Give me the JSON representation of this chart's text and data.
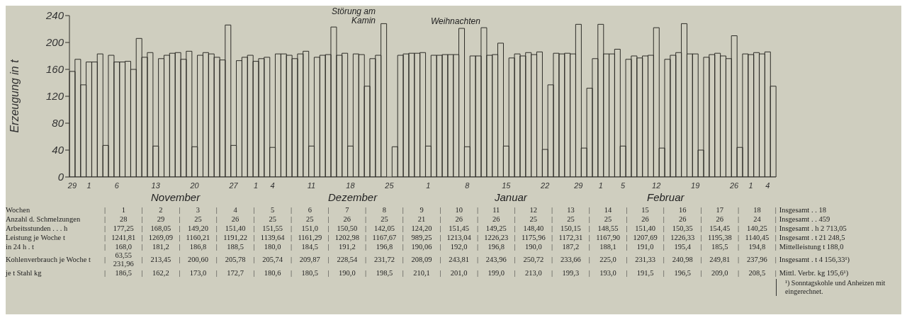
{
  "chart_data": {
    "type": "bar",
    "ylabel": "Erzeugung in t",
    "color": "#2e2d28",
    "ylim": [
      0,
      240
    ],
    "yticks": [
      0,
      40,
      80,
      120,
      160,
      200,
      240
    ],
    "grid": false,
    "legend": false,
    "categories": [
      "29",
      null,
      null,
      "1",
      null,
      null,
      null,
      null,
      "6",
      null,
      null,
      null,
      null,
      null,
      null,
      "13",
      null,
      null,
      null,
      null,
      null,
      null,
      "20",
      null,
      null,
      null,
      null,
      null,
      null,
      "27",
      null,
      null,
      null,
      "1",
      null,
      null,
      "4",
      null,
      null,
      null,
      null,
      null,
      null,
      "11",
      null,
      null,
      null,
      null,
      null,
      null,
      "18",
      null,
      null,
      null,
      null,
      null,
      null,
      "25",
      null,
      null,
      null,
      null,
      null,
      null,
      "1",
      null,
      null,
      null,
      null,
      null,
      null,
      "8",
      null,
      null,
      null,
      null,
      null,
      null,
      "15",
      null,
      null,
      null,
      null,
      null,
      null,
      "22",
      null,
      null,
      null,
      null,
      null,
      "29",
      null,
      null,
      null,
      "1",
      null,
      null,
      null,
      "5",
      null,
      null,
      null,
      null,
      null,
      "12",
      null,
      null,
      null,
      null,
      null,
      null,
      "19",
      null,
      null,
      null,
      null,
      null,
      null,
      "26",
      null,
      null,
      "1",
      null,
      null,
      "4",
      null
    ],
    "values": [
      157,
      175,
      137,
      171,
      171,
      183,
      47,
      181,
      171,
      171,
      172,
      160,
      206,
      178,
      185,
      46,
      176,
      181,
      184,
      185,
      175,
      187,
      45,
      181,
      185,
      183,
      178,
      174,
      226,
      47,
      173,
      178,
      181,
      172,
      176,
      178,
      44,
      183,
      183,
      181,
      176,
      183,
      187,
      46,
      178,
      181,
      182,
      223,
      181,
      184,
      46,
      183,
      182,
      135,
      176,
      181,
      228,
      null,
      45,
      181,
      183,
      184,
      184,
      185,
      46,
      181,
      181,
      182,
      182,
      182,
      221,
      45,
      180,
      180,
      222,
      181,
      182,
      199,
      46,
      177,
      183,
      180,
      185,
      182,
      186,
      41,
      137,
      184,
      183,
      184,
      183,
      227,
      43,
      132,
      176,
      227,
      183,
      183,
      190,
      46,
      175,
      180,
      177,
      180,
      181,
      222,
      43,
      175,
      181,
      185,
      228,
      183,
      183,
      40,
      178,
      182,
      184,
      180,
      176,
      210,
      44,
      183,
      182,
      185,
      183,
      186,
      135
    ],
    "annotations": [
      "Störung am Kamin",
      "Weihnachten",
      "November",
      "Dezember",
      "Januar",
      "Februar",
      "Wochen | 1 | 2 | 3 | 4 | 5 | 6 | 7 | 8 | 9 | 10 | 11 | 12 | 13 | 14 | 15 | 16 | 17 | 18 | Insgesamt . . 18",
      "Anzahl d. Schmelzungen | 28 | 29 | 25 | 26 | 25 | 25 | 26 | 25 | 21 | 26 | 26 | 25 | 25 | 25 | 26 | 26 | 26 | 24 | Insgesamt . . 459",
      "Arbeitsstunden . . . h | 177,25 | 168,05 | 149,20 | 151,40 | 151,55 | 151,0 | 150,50 | 142,05 | 124,20 | 151,45 | 149,25 | 148,40 | 150,15 | 148,55 | 151,40 | 150,35 | 154,45 | 140,25 | Insgesamt . h 2 713,05",
      "Leistung je Woche t | 1241,81 | 1269,09 | 1160,21 | 1191,22 | 1139,64 | 1161,29 | 1202,98 | 1167,67 | 989,25 | 1213,04 | 1226,23 | 1175,96 | 1172,31 | 1167,90 | 1207,69 | 1226,33 | 1195,38 | 1140,45 | Insgesamt . t 21 248,5",
      "in 24 h . t | 168,0 | 181,2 | 186,8 | 188,5 | 180,0 | 184,5 | 191,2 | 196,8 | 190,06 | 192,0 | 196,8 | 190,0 | 187,2 | 188,1 | 191,0 | 195,4 | 185,5 | 194,8 | Mittelleistung t 188,0",
      "Kohlenverbrauch je Woche t | 63,55 231,96 | 213,45 | 200,60 | 205,78 | 205,74 | 209,87 | 228,54 | 231,72 | 208,09 | 243,81 | 243,96 | 250,72 | 233,66 | 225,0 | 231,33 | 240,98 | 249,81 | 237,96 | Insgesamt . t 4 156,33¹)",
      "je t Stahl kg | 186,5 | 162,2 | 173,0 | 172,7 | 180,6 | 180,5 | 190,0 | 198,5 | 210,1 | 201,0 | 199,0 | 213,0 | 199,3 | 193,0 | 191,5 | 196,5 | 209,0 | 208,5 | Mittl. Verbr. kg 195,6¹)",
      "¹) Sonntagskohle und Anheizen mit eingerechnet."
    ]
  }
}
